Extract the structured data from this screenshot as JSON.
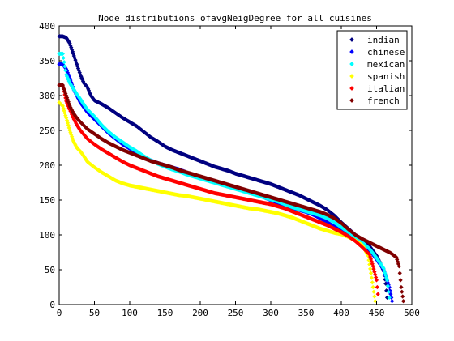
{
  "chart_data": {
    "type": "scatter",
    "title": "Node distributions ofavgNeigDegree for all cuisines",
    "xlabel": "",
    "ylabel": "",
    "xlim": [
      0,
      500
    ],
    "ylim": [
      0,
      400
    ],
    "xticks": [
      0,
      50,
      100,
      150,
      200,
      250,
      300,
      350,
      400,
      450,
      500
    ],
    "yticks": [
      0,
      50,
      100,
      150,
      200,
      250,
      300,
      350,
      400
    ],
    "grid": false,
    "legend_position": "top-right",
    "series": [
      {
        "name": "indian",
        "color": "#000080",
        "points": [
          [
            0,
            385
          ],
          [
            5,
            385
          ],
          [
            10,
            383
          ],
          [
            15,
            375
          ],
          [
            20,
            360
          ],
          [
            25,
            345
          ],
          [
            30,
            330
          ],
          [
            35,
            318
          ],
          [
            40,
            312
          ],
          [
            45,
            300
          ],
          [
            50,
            293
          ],
          [
            60,
            288
          ],
          [
            70,
            282
          ],
          [
            80,
            275
          ],
          [
            90,
            268
          ],
          [
            100,
            262
          ],
          [
            110,
            256
          ],
          [
            120,
            248
          ],
          [
            130,
            240
          ],
          [
            140,
            234
          ],
          [
            150,
            227
          ],
          [
            160,
            222
          ],
          [
            170,
            218
          ],
          [
            180,
            214
          ],
          [
            190,
            210
          ],
          [
            200,
            206
          ],
          [
            210,
            202
          ],
          [
            220,
            198
          ],
          [
            230,
            195
          ],
          [
            240,
            192
          ],
          [
            250,
            188
          ],
          [
            260,
            185
          ],
          [
            270,
            182
          ],
          [
            280,
            179
          ],
          [
            290,
            176
          ],
          [
            300,
            173
          ],
          [
            310,
            169
          ],
          [
            320,
            165
          ],
          [
            330,
            161
          ],
          [
            340,
            157
          ],
          [
            350,
            152
          ],
          [
            360,
            147
          ],
          [
            370,
            142
          ],
          [
            380,
            136
          ],
          [
            390,
            128
          ],
          [
            400,
            118
          ],
          [
            410,
            109
          ],
          [
            420,
            100
          ],
          [
            430,
            92
          ],
          [
            440,
            84
          ],
          [
            450,
            70
          ],
          [
            455,
            60
          ],
          [
            460,
            48
          ],
          [
            463,
            30
          ],
          [
            465,
            10
          ]
        ]
      },
      {
        "name": "chinese",
        "color": "#0000ff",
        "points": [
          [
            0,
            345
          ],
          [
            5,
            345
          ],
          [
            10,
            338
          ],
          [
            15,
            325
          ],
          [
            20,
            310
          ],
          [
            25,
            300
          ],
          [
            30,
            290
          ],
          [
            35,
            283
          ],
          [
            40,
            276
          ],
          [
            50,
            266
          ],
          [
            60,
            256
          ],
          [
            70,
            246
          ],
          [
            80,
            238
          ],
          [
            90,
            230
          ],
          [
            100,
            224
          ],
          [
            110,
            218
          ],
          [
            120,
            212
          ],
          [
            130,
            207
          ],
          [
            140,
            203
          ],
          [
            150,
            200
          ],
          [
            160,
            197
          ],
          [
            170,
            194
          ],
          [
            180,
            190
          ],
          [
            190,
            186
          ],
          [
            200,
            182
          ],
          [
            210,
            179
          ],
          [
            220,
            176
          ],
          [
            230,
            173
          ],
          [
            240,
            170
          ],
          [
            250,
            167
          ],
          [
            260,
            164
          ],
          [
            270,
            161
          ],
          [
            280,
            158
          ],
          [
            290,
            154
          ],
          [
            300,
            150
          ],
          [
            310,
            146
          ],
          [
            320,
            142
          ],
          [
            330,
            139
          ],
          [
            340,
            136
          ],
          [
            350,
            133
          ],
          [
            360,
            129
          ],
          [
            370,
            124
          ],
          [
            380,
            118
          ],
          [
            390,
            112
          ],
          [
            400,
            107
          ],
          [
            410,
            102
          ],
          [
            420,
            96
          ],
          [
            430,
            88
          ],
          [
            440,
            78
          ],
          [
            450,
            65
          ],
          [
            460,
            50
          ],
          [
            468,
            25
          ],
          [
            472,
            5
          ]
        ]
      },
      {
        "name": "mexican",
        "color": "#00ffff",
        "points": [
          [
            0,
            360
          ],
          [
            5,
            360
          ],
          [
            10,
            330
          ],
          [
            15,
            318
          ],
          [
            20,
            310
          ],
          [
            25,
            302
          ],
          [
            30,
            295
          ],
          [
            35,
            287
          ],
          [
            40,
            280
          ],
          [
            50,
            270
          ],
          [
            60,
            258
          ],
          [
            70,
            248
          ],
          [
            80,
            240
          ],
          [
            90,
            233
          ],
          [
            100,
            226
          ],
          [
            110,
            220
          ],
          [
            120,
            213
          ],
          [
            130,
            207
          ],
          [
            140,
            202
          ],
          [
            150,
            198
          ],
          [
            160,
            194
          ],
          [
            170,
            191
          ],
          [
            180,
            187
          ],
          [
            190,
            184
          ],
          [
            200,
            181
          ],
          [
            210,
            178
          ],
          [
            220,
            175
          ],
          [
            230,
            172
          ],
          [
            240,
            169
          ],
          [
            250,
            166
          ],
          [
            260,
            163
          ],
          [
            270,
            160
          ],
          [
            280,
            157
          ],
          [
            290,
            154
          ],
          [
            300,
            151
          ],
          [
            310,
            148
          ],
          [
            320,
            144
          ],
          [
            330,
            140
          ],
          [
            340,
            137
          ],
          [
            350,
            134
          ],
          [
            360,
            131
          ],
          [
            370,
            128
          ],
          [
            380,
            124
          ],
          [
            390,
            118
          ],
          [
            400,
            111
          ],
          [
            410,
            104
          ],
          [
            420,
            97
          ],
          [
            430,
            89
          ],
          [
            440,
            80
          ],
          [
            450,
            67
          ],
          [
            460,
            52
          ],
          [
            465,
            35
          ],
          [
            468,
            10
          ]
        ]
      },
      {
        "name": "spanish",
        "color": "#ffff00",
        "points": [
          [
            0,
            290
          ],
          [
            5,
            285
          ],
          [
            10,
            268
          ],
          [
            15,
            250
          ],
          [
            20,
            235
          ],
          [
            25,
            225
          ],
          [
            30,
            220
          ],
          [
            35,
            213
          ],
          [
            40,
            205
          ],
          [
            50,
            197
          ],
          [
            60,
            190
          ],
          [
            70,
            184
          ],
          [
            80,
            178
          ],
          [
            90,
            174
          ],
          [
            100,
            171
          ],
          [
            110,
            169
          ],
          [
            120,
            167
          ],
          [
            130,
            165
          ],
          [
            140,
            163
          ],
          [
            150,
            161
          ],
          [
            160,
            159
          ],
          [
            170,
            157
          ],
          [
            180,
            156
          ],
          [
            190,
            154
          ],
          [
            200,
            152
          ],
          [
            210,
            150
          ],
          [
            220,
            148
          ],
          [
            230,
            146
          ],
          [
            240,
            144
          ],
          [
            250,
            142
          ],
          [
            260,
            140
          ],
          [
            270,
            138
          ],
          [
            280,
            137
          ],
          [
            290,
            135
          ],
          [
            300,
            133
          ],
          [
            310,
            131
          ],
          [
            320,
            128
          ],
          [
            330,
            125
          ],
          [
            340,
            121
          ],
          [
            350,
            117
          ],
          [
            360,
            113
          ],
          [
            370,
            109
          ],
          [
            380,
            106
          ],
          [
            390,
            103
          ],
          [
            400,
            101
          ],
          [
            410,
            97
          ],
          [
            420,
            92
          ],
          [
            430,
            85
          ],
          [
            438,
            70
          ],
          [
            442,
            45
          ],
          [
            445,
            25
          ],
          [
            448,
            5
          ]
        ]
      },
      {
        "name": "italian",
        "color": "#ff0000",
        "points": [
          [
            0,
            315
          ],
          [
            5,
            315
          ],
          [
            10,
            292
          ],
          [
            15,
            280
          ],
          [
            20,
            268
          ],
          [
            25,
            258
          ],
          [
            30,
            250
          ],
          [
            35,
            244
          ],
          [
            40,
            238
          ],
          [
            50,
            230
          ],
          [
            60,
            223
          ],
          [
            70,
            217
          ],
          [
            80,
            211
          ],
          [
            90,
            205
          ],
          [
            100,
            200
          ],
          [
            110,
            196
          ],
          [
            120,
            192
          ],
          [
            130,
            188
          ],
          [
            140,
            184
          ],
          [
            150,
            181
          ],
          [
            160,
            178
          ],
          [
            170,
            175
          ],
          [
            180,
            172
          ],
          [
            190,
            169
          ],
          [
            200,
            166
          ],
          [
            210,
            163
          ],
          [
            220,
            160
          ],
          [
            230,
            158
          ],
          [
            240,
            156
          ],
          [
            250,
            154
          ],
          [
            260,
            152
          ],
          [
            270,
            150
          ],
          [
            280,
            148
          ],
          [
            290,
            146
          ],
          [
            300,
            144
          ],
          [
            310,
            141
          ],
          [
            320,
            138
          ],
          [
            330,
            134
          ],
          [
            340,
            130
          ],
          [
            350,
            126
          ],
          [
            360,
            122
          ],
          [
            370,
            118
          ],
          [
            380,
            114
          ],
          [
            390,
            109
          ],
          [
            400,
            104
          ],
          [
            410,
            98
          ],
          [
            420,
            91
          ],
          [
            430,
            82
          ],
          [
            440,
            72
          ],
          [
            445,
            55
          ],
          [
            450,
            35
          ],
          [
            452,
            15
          ]
        ]
      },
      {
        "name": "french",
        "color": "#800000",
        "points": [
          [
            0,
            315
          ],
          [
            5,
            315
          ],
          [
            10,
            300
          ],
          [
            15,
            285
          ],
          [
            20,
            275
          ],
          [
            25,
            268
          ],
          [
            30,
            262
          ],
          [
            35,
            257
          ],
          [
            40,
            252
          ],
          [
            50,
            245
          ],
          [
            60,
            238
          ],
          [
            70,
            232
          ],
          [
            80,
            227
          ],
          [
            90,
            222
          ],
          [
            100,
            218
          ],
          [
            110,
            214
          ],
          [
            120,
            210
          ],
          [
            130,
            206
          ],
          [
            140,
            203
          ],
          [
            150,
            200
          ],
          [
            160,
            197
          ],
          [
            170,
            193
          ],
          [
            180,
            190
          ],
          [
            190,
            187
          ],
          [
            200,
            184
          ],
          [
            210,
            181
          ],
          [
            220,
            178
          ],
          [
            230,
            175
          ],
          [
            240,
            172
          ],
          [
            250,
            169
          ],
          [
            260,
            166
          ],
          [
            270,
            163
          ],
          [
            280,
            160
          ],
          [
            290,
            157
          ],
          [
            300,
            154
          ],
          [
            310,
            151
          ],
          [
            320,
            148
          ],
          [
            330,
            145
          ],
          [
            340,
            142
          ],
          [
            350,
            139
          ],
          [
            360,
            136
          ],
          [
            370,
            133
          ],
          [
            380,
            129
          ],
          [
            390,
            124
          ],
          [
            400,
            117
          ],
          [
            410,
            108
          ],
          [
            420,
            100
          ],
          [
            430,
            94
          ],
          [
            440,
            89
          ],
          [
            450,
            84
          ],
          [
            460,
            79
          ],
          [
            470,
            74
          ],
          [
            478,
            68
          ],
          [
            482,
            55
          ],
          [
            485,
            25
          ],
          [
            488,
            5
          ]
        ]
      }
    ]
  }
}
